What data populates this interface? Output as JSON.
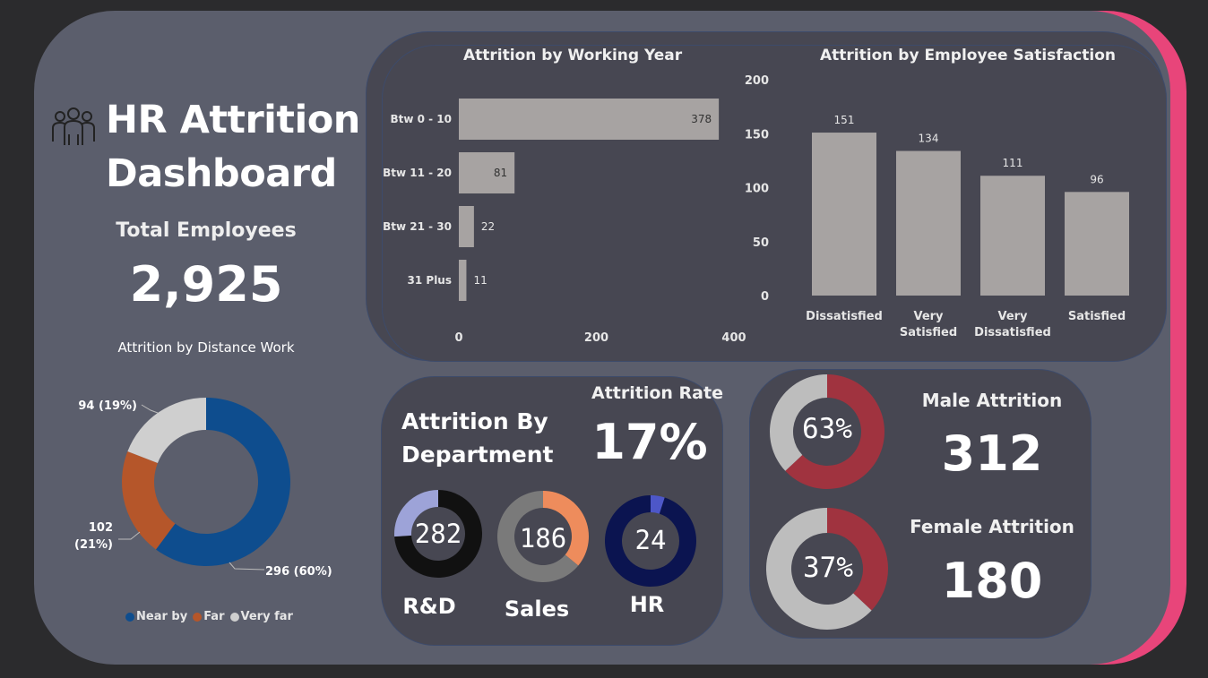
{
  "header": {
    "title_line1": "HR Attrition",
    "title_line2": "Dashboard"
  },
  "kpi": {
    "total_label": "Total Employees",
    "total_value": "2,925"
  },
  "colors": {
    "background": "#2b2b2d",
    "frame": "#5b5e6c",
    "accent": "#e8457a",
    "panel": "#474752",
    "bar": "#a7a3a2",
    "near_by": "#0e4d8e",
    "far": "#b5562a",
    "very_far": "#cfcfcf",
    "female_red": "#a0333f"
  },
  "icons": {
    "title_icon": "people-group-icon"
  },
  "department": {
    "title_line1": "Attrition By",
    "title_line2": "Department",
    "rate_label": "Attrition Rate",
    "rate_value": "17%",
    "items": [
      {
        "name": "R&D",
        "value": "282"
      },
      {
        "name": "Sales",
        "value": "186"
      },
      {
        "name": "HR",
        "value": "24"
      }
    ]
  },
  "gender": {
    "male_label": "Male Attrition",
    "male_value": "312",
    "male_pct": "63%",
    "female_label": "Female Attrition",
    "female_value": "180",
    "female_pct": "37%"
  },
  "chart_data": [
    {
      "id": "working-year",
      "type": "bar",
      "orientation": "horizontal",
      "title": "Attrition by Working Year",
      "categories": [
        "Btw 0 - 10",
        "Btw 11 - 20",
        "Btw 21 - 30",
        "31 Plus"
      ],
      "values": [
        378,
        81,
        22,
        11
      ],
      "xlim": [
        0,
        400
      ],
      "xticks": [
        0,
        200,
        400
      ],
      "grid": false
    },
    {
      "id": "satisfaction",
      "type": "bar",
      "orientation": "vertical",
      "title": "Attrition by Employee Satisfaction",
      "categories": [
        [
          "Dissatisfied"
        ],
        [
          "Very",
          "Satisfied"
        ],
        [
          "Very",
          "Dissatisfied"
        ],
        [
          "Satisfied"
        ]
      ],
      "values": [
        151,
        134,
        111,
        96
      ],
      "ylim": [
        0,
        200
      ],
      "yticks": [
        0,
        50,
        100,
        150,
        200
      ],
      "grid": false
    },
    {
      "id": "distance",
      "type": "pie",
      "donut": true,
      "title": "Attrition by Distance Work",
      "slices": [
        {
          "name": "Near by",
          "value": 296,
          "label": "296 (60%)",
          "color": "#0e4d8e"
        },
        {
          "name": "Far",
          "value": 102,
          "label_line1": "102",
          "label_line2": "(21%)",
          "color": "#b5562a"
        },
        {
          "name": "Very far",
          "value": 94,
          "label": "94 (19%)",
          "color": "#cfcfcf"
        }
      ],
      "legend_position": "bottom"
    },
    {
      "id": "dept-rd",
      "type": "pie",
      "donut": true,
      "share": 0.74,
      "colors": [
        "#111111",
        "#9da3d8"
      ]
    },
    {
      "id": "dept-sales",
      "type": "pie",
      "donut": true,
      "share": 0.36,
      "colors": [
        "#ee8c5c",
        "#7a7a7a"
      ]
    },
    {
      "id": "dept-hr",
      "type": "pie",
      "donut": true,
      "share": 0.05,
      "colors": [
        "#4d57c8",
        "#0b1450"
      ]
    },
    {
      "id": "male",
      "type": "pie",
      "donut": true,
      "share": 0.63,
      "colors": [
        "#a0333f",
        "#bdbdbd"
      ]
    },
    {
      "id": "female",
      "type": "pie",
      "donut": true,
      "share": 0.37,
      "colors": [
        "#a0333f",
        "#bdbdbd"
      ]
    }
  ]
}
